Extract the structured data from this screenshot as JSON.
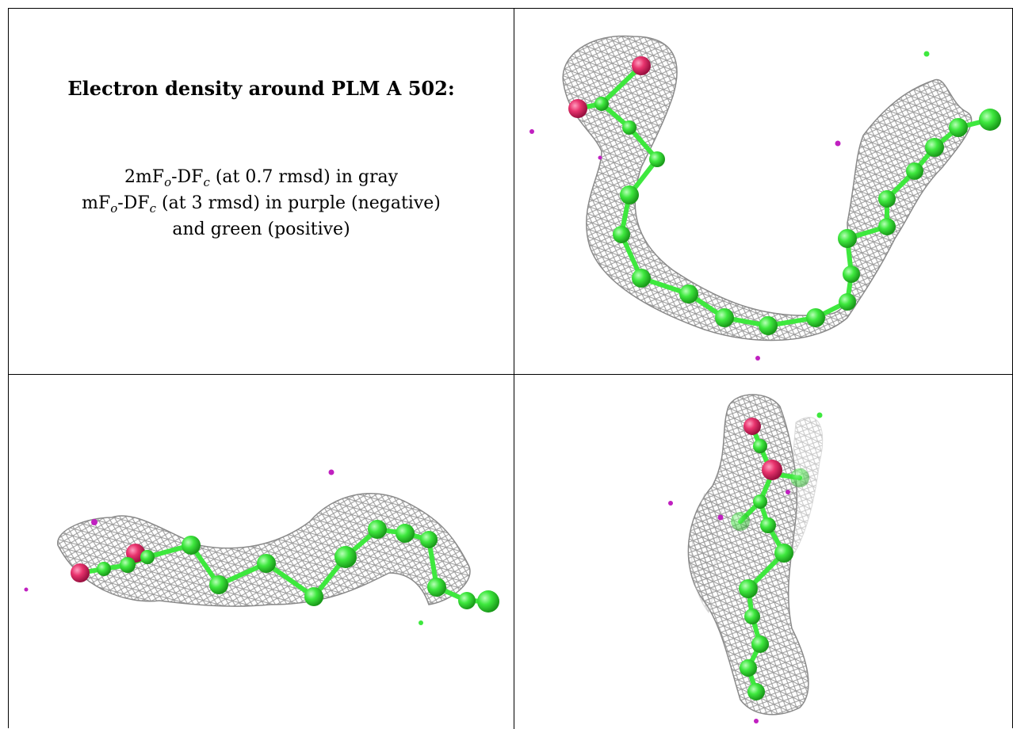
{
  "title": "Electron density around PLM A 502:",
  "legend": {
    "line1": {
      "a": "2mF",
      "b": "o",
      "c": "-DF",
      "d": "c",
      "e": " (at 0.7 rmsd) in gray"
    },
    "line2": {
      "a": "mF",
      "b": "o",
      "c": "-DF",
      "d": "c",
      "e": " (at 3 rmsd) in purple (negative)"
    },
    "line3": "and green (positive)"
  },
  "colors": {
    "mesh": "#a9a9a9",
    "carbon": "#3ee83e",
    "oxygen": "#e8336d",
    "negative": "#c020c0",
    "positive": "#3ee83e"
  }
}
